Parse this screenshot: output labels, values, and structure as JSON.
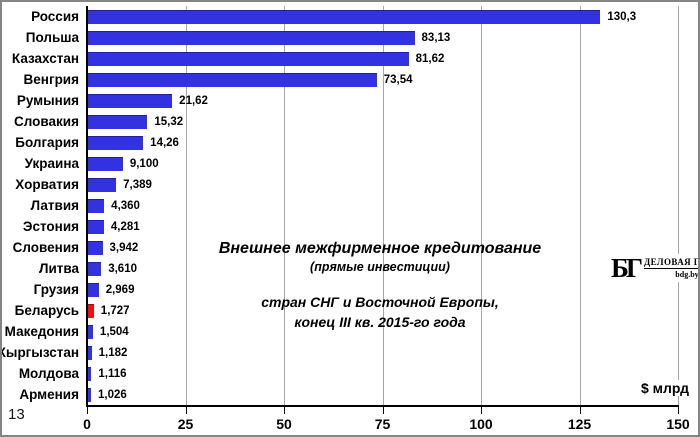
{
  "page_number": "13",
  "logo": {
    "monogram": "БГ",
    "name": "ДЕЛОВАЯ ГАЗЕТА",
    "site": "bdg.by"
  },
  "colors": {
    "bar": "#3232e1",
    "highlight_bar": "#ee1111",
    "gridline": "#a6a6a6",
    "axis": "#000000"
  },
  "chart_data": {
    "type": "bar",
    "orientation": "horizontal",
    "title_lines": [
      "Внешнее межфирменное кредитование",
      "(прямые инвестиции)",
      "стран СНГ и Восточной Европы,",
      "конец III кв. 2015-го года"
    ],
    "xlabel": "$ млрд",
    "categories": [
      "Россия",
      "Польша",
      "Казахстан",
      "Венгрия",
      "Румыния",
      "Словакия",
      "Болгария",
      "Украина",
      "Хорватия",
      "Латвия",
      "Эстония",
      "Словения",
      "Литва",
      "Грузия",
      "Беларусь",
      "Македония",
      "Кыргызстан",
      "Молдова",
      "Армения"
    ],
    "values": [
      130.3,
      83.13,
      81.62,
      73.54,
      21.62,
      15.32,
      14.26,
      9.1,
      7.389,
      4.36,
      4.281,
      3.942,
      3.61,
      2.969,
      1.727,
      1.504,
      1.182,
      1.116,
      1.026
    ],
    "value_labels": [
      "130,3",
      "83,13",
      "81,62",
      "73,54",
      "21,62",
      "15,32",
      "14,26",
      "9,100",
      "7,389",
      "4,360",
      "4,281",
      "3,942",
      "3,610",
      "2,969",
      "1,727",
      "1,504",
      "1,182",
      "1,116",
      "1,026"
    ],
    "highlight_category": "Беларусь",
    "x_ticks": [
      0,
      25,
      50,
      75,
      100,
      125,
      150
    ],
    "xlim": [
      0,
      150
    ],
    "gridlines": true,
    "legend": false
  }
}
